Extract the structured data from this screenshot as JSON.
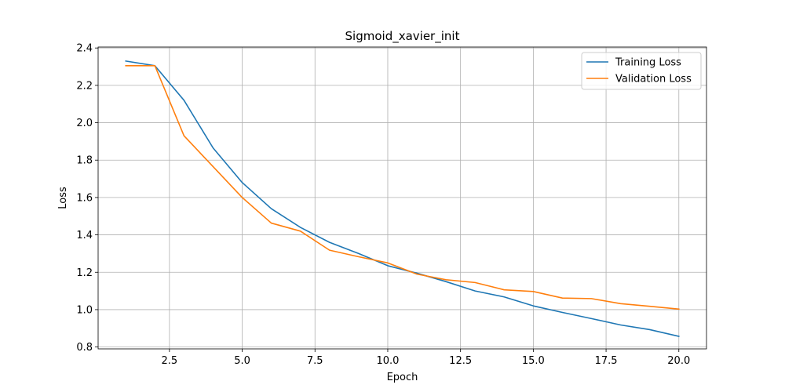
{
  "chart_data": {
    "type": "line",
    "title": "Sigmoid_xavier_init",
    "xlabel": "Epoch",
    "ylabel": "Loss",
    "xlim": [
      0.05,
      20.95
    ],
    "ylim": [
      0.79,
      2.405
    ],
    "xticks": [
      2.5,
      5.0,
      7.5,
      10.0,
      12.5,
      15.0,
      17.5,
      20.0
    ],
    "yticks": [
      0.8,
      1.0,
      1.2,
      1.4,
      1.6,
      1.8,
      2.0,
      2.2,
      2.4
    ],
    "grid": true,
    "legend_position": "top-right",
    "x": [
      1,
      2,
      3,
      4,
      5,
      6,
      7,
      8,
      9,
      10,
      11,
      12,
      13,
      14,
      15,
      16,
      17,
      18,
      19,
      20
    ],
    "series": [
      {
        "name": "Training Loss",
        "color": "#1f77b4",
        "values": [
          2.33,
          2.305,
          2.12,
          1.865,
          1.68,
          1.54,
          1.44,
          1.36,
          1.3,
          1.235,
          1.195,
          1.15,
          1.1,
          1.068,
          1.02,
          0.985,
          0.952,
          0.918,
          0.893,
          0.857
        ]
      },
      {
        "name": "Validation Loss",
        "color": "#ff7f0e",
        "values": [
          2.305,
          2.305,
          1.93,
          1.765,
          1.6,
          1.463,
          1.42,
          1.318,
          1.283,
          1.25,
          1.19,
          1.16,
          1.145,
          1.106,
          1.097,
          1.062,
          1.059,
          1.032,
          1.018,
          1.003
        ]
      }
    ]
  }
}
